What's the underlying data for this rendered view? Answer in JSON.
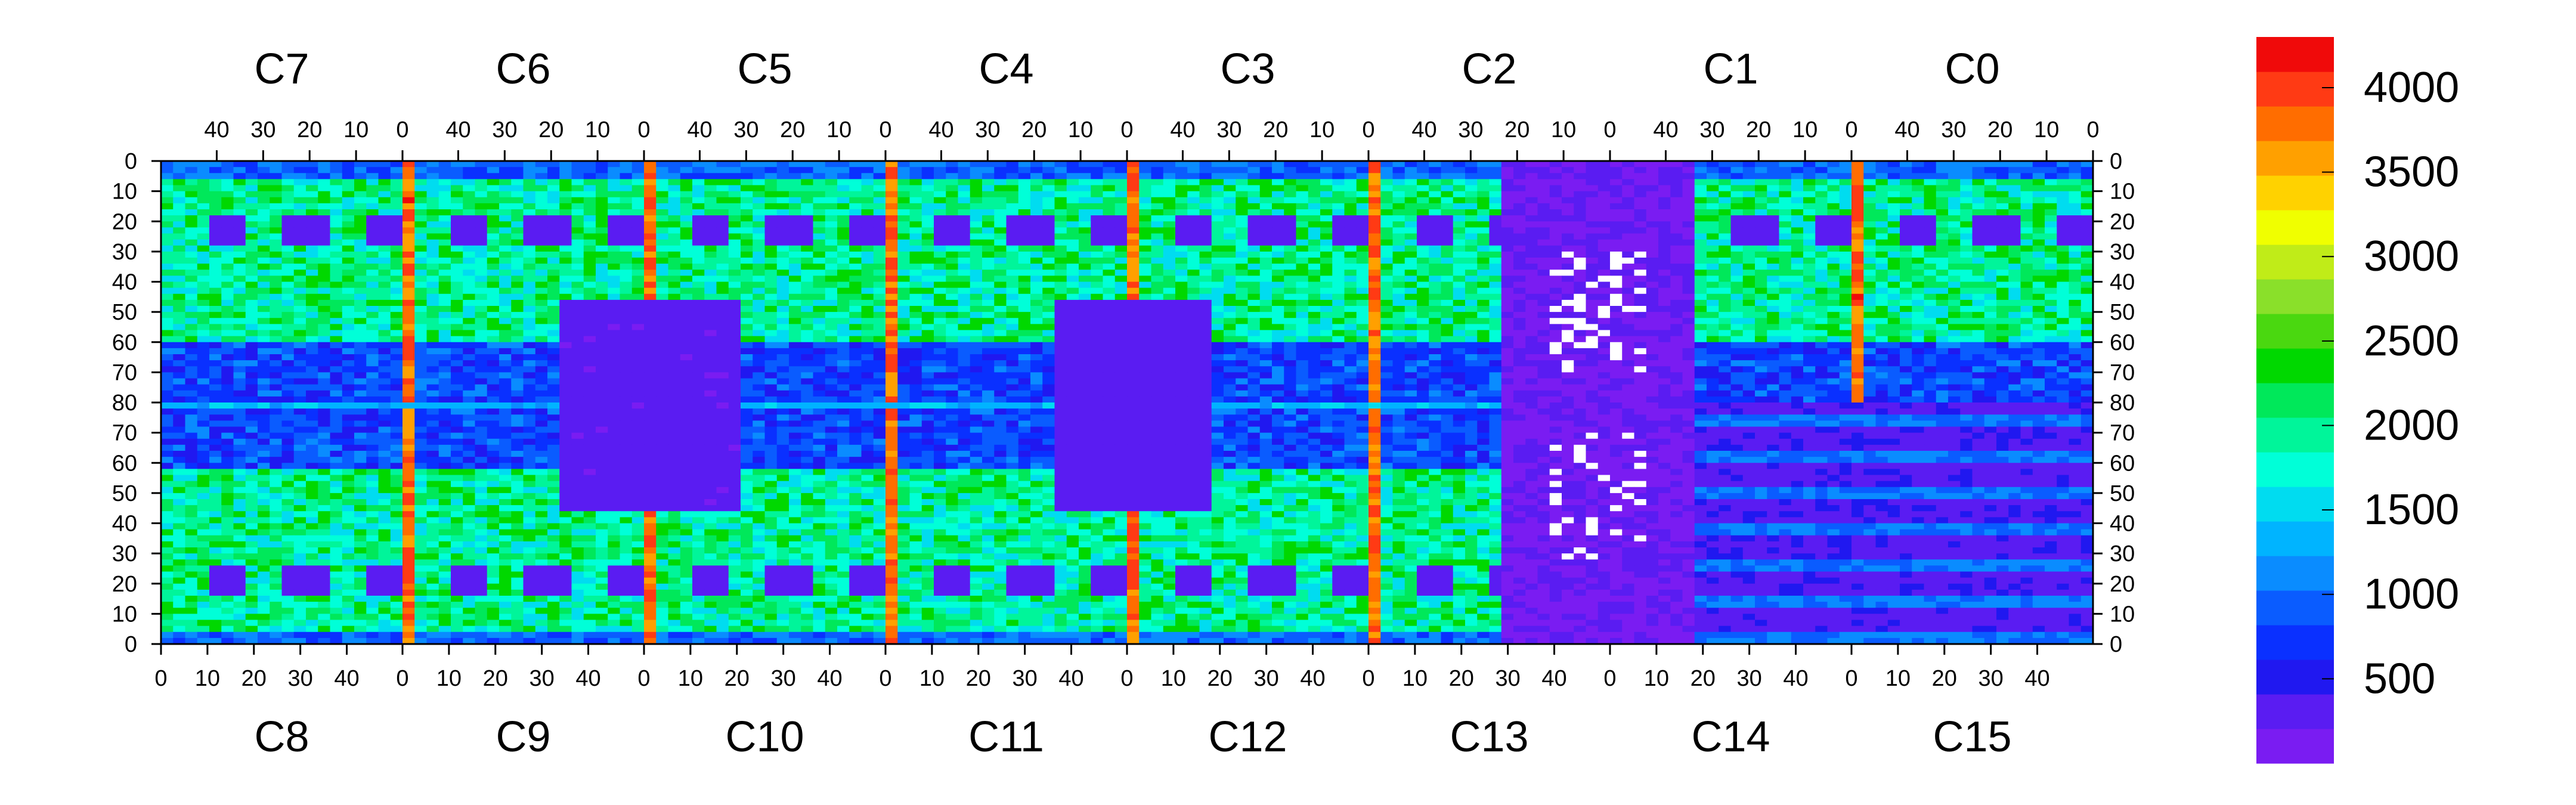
{
  "chart_data": {
    "type": "heatmap",
    "title": "",
    "xlabel": "",
    "ylabel": "",
    "top_chips": [
      "C7",
      "C6",
      "C5",
      "C4",
      "C3",
      "C2",
      "C1",
      "C0"
    ],
    "bottom_chips": [
      "C8",
      "C9",
      "C10",
      "C11",
      "C12",
      "C13",
      "C14",
      "C15"
    ],
    "top_tick_labels": [
      "40",
      "30",
      "20",
      "10",
      "0"
    ],
    "bottom_tick_labels": [
      "0",
      "10",
      "20",
      "30",
      "40"
    ],
    "x_ticks_top": [
      40,
      30,
      20,
      10,
      0
    ],
    "x_ticks_bottom": [
      0,
      10,
      20,
      30,
      40
    ],
    "columns_per_chip": 52,
    "rows_per_half": 80,
    "y_tick_labels_top_half": [
      "0",
      "10",
      "20",
      "30",
      "40",
      "50",
      "60",
      "70"
    ],
    "y_tick_label_mid": "80",
    "y_tick_labels_bottom_half": [
      "70",
      "60",
      "50",
      "40",
      "30",
      "20",
      "10",
      "0"
    ],
    "ylim": [
      0,
      80
    ],
    "z_range": [
      0,
      4300
    ],
    "colorbar_ticks": [
      500,
      1000,
      1500,
      2000,
      2500,
      3000,
      3500,
      4000
    ],
    "colorbar_tick_labels": [
      "500",
      "1000",
      "1500",
      "2000",
      "2500",
      "3000",
      "3500",
      "4000"
    ],
    "colorbar_colors": [
      "#7a1cf2",
      "#5a1cf2",
      "#2018f0",
      "#0a30ff",
      "#0a5cff",
      "#0a8cff",
      "#00b4ff",
      "#00dcf0",
      "#00ffd8",
      "#00f59a",
      "#00e85a",
      "#00d800",
      "#4ad810",
      "#8ae02a",
      "#c0ec18",
      "#f0ff00",
      "#ffd200",
      "#ffa000",
      "#ff6d00",
      "#ff3a14",
      "#f00a0a"
    ],
    "series": [
      {
        "region": "upper-chips",
        "typical_value": 1800,
        "edge_band_value": 900,
        "pad_cutout_value": 200
      },
      {
        "region": "lower-chips",
        "typical_value": 1700,
        "edge_band_value": 900,
        "pad_cutout_value": 200
      },
      {
        "region": "chip-boundary-columns",
        "typical_value": 3900
      },
      {
        "region": "middle-row-80",
        "typical_value": 1300
      },
      {
        "region": "C2/C13-C14-blank",
        "typical_value": 150,
        "dead_pixel_value": 4300
      },
      {
        "region": "C1/C0-lower-streaks",
        "typical_value": 900
      }
    ]
  }
}
